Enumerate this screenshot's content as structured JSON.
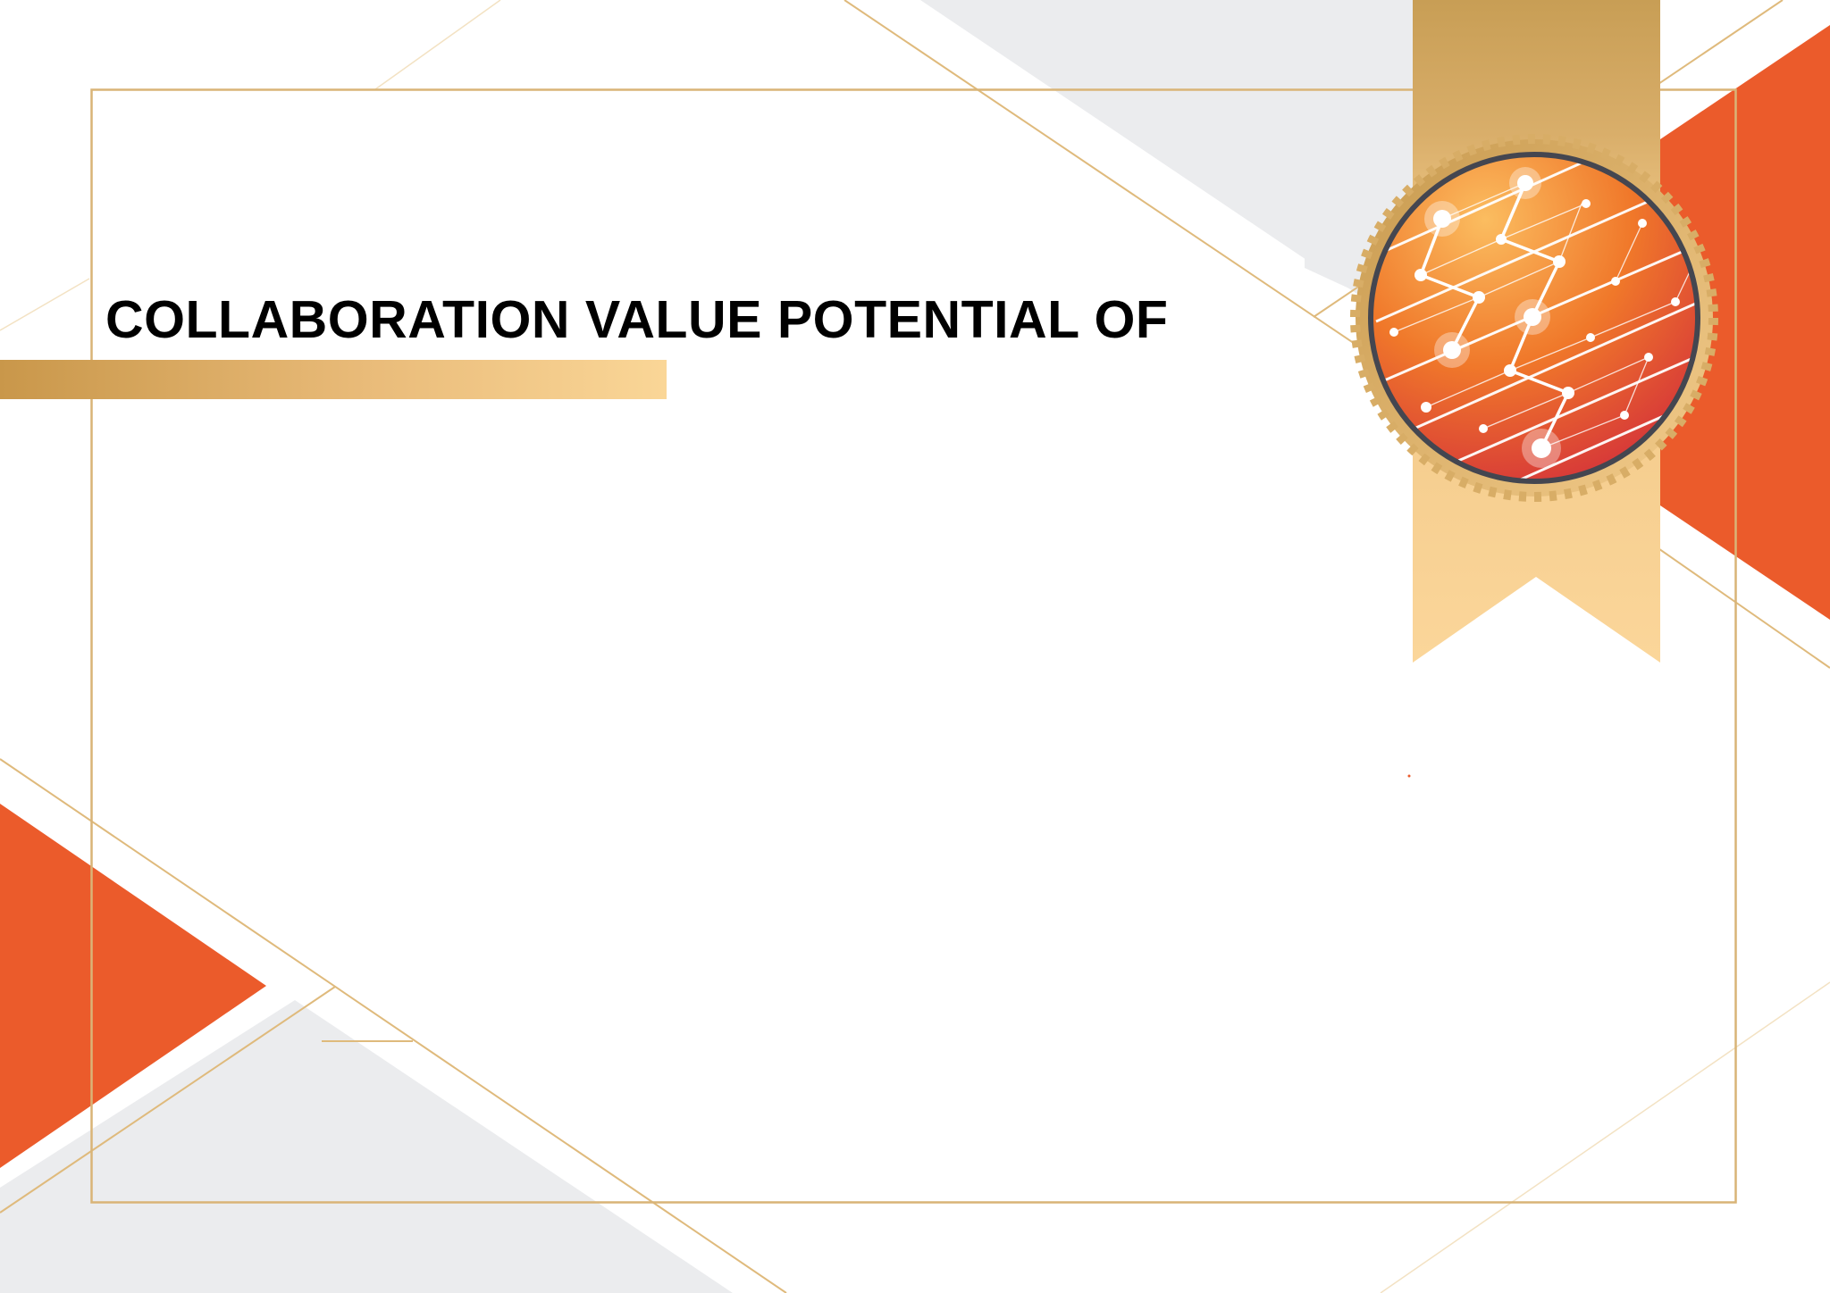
{
  "certificate": {
    "title": "COLLABORATION VALUE POTENTIAL OF"
  },
  "colors": {
    "accent_orange": "#eb5b2b",
    "gold": "#c9a05a",
    "light_gold": "#fad697",
    "light_gray": "#ebecee",
    "seal_ring": "#444650"
  },
  "icons": {
    "seal": "network-seal-icon",
    "ribbon": "ribbon-icon"
  }
}
